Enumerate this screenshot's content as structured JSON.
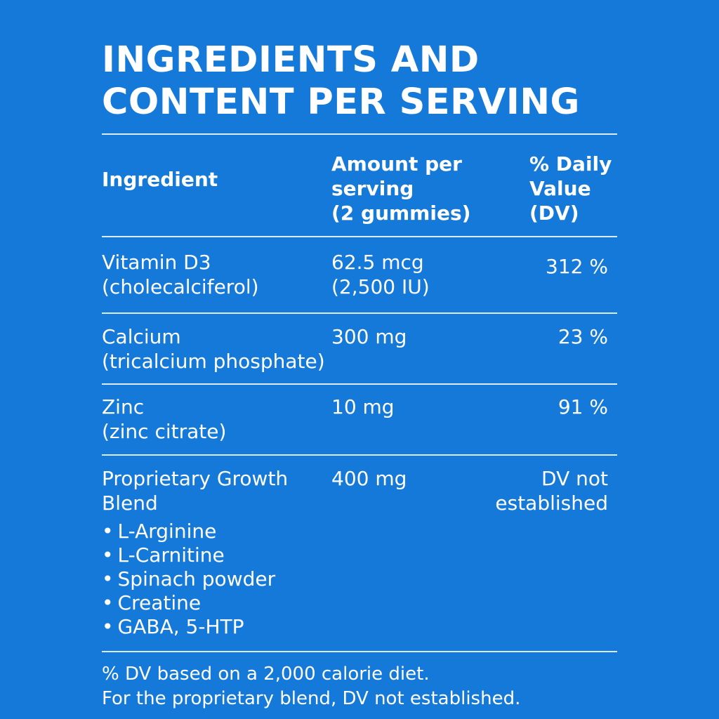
{
  "title": {
    "line1": "INGREDIENTS AND",
    "line2": "CONTENT PER SERVING"
  },
  "table": {
    "headers": {
      "ingredient": "Ingredient",
      "amount": [
        "Amount per",
        "serving",
        "(2 gummies)"
      ],
      "dv": [
        "% Daily",
        "Value",
        "(DV)"
      ]
    },
    "rows": [
      {
        "name": [
          "Vitamin D3",
          "(cholecalciferol)"
        ],
        "amount": [
          "62.5 mcg",
          "(2,500 IU)"
        ],
        "dv": [
          "312 %"
        ]
      },
      {
        "name": [
          "Calcium",
          "(tricalcium phosphate)"
        ],
        "amount": [
          "300 mg"
        ],
        "dv": [
          "23 %"
        ]
      },
      {
        "name": [
          "Zinc",
          "(zinc citrate)"
        ],
        "amount": [
          "10 mg"
        ],
        "dv": [
          "91 %"
        ]
      },
      {
        "name": [
          "Proprietary Growth",
          "Blend"
        ],
        "amount": [
          "400 mg"
        ],
        "dv": [
          "DV not",
          "established"
        ],
        "components": [
          "L-Arginine",
          "L-Carnitine",
          "Spinach powder",
          "Creatine",
          "GABA, 5-HTP"
        ]
      }
    ]
  },
  "footnote": {
    "line1": "% DV based on a 2,000 calorie diet.",
    "line2": "For the proprietary blend, DV not established."
  }
}
